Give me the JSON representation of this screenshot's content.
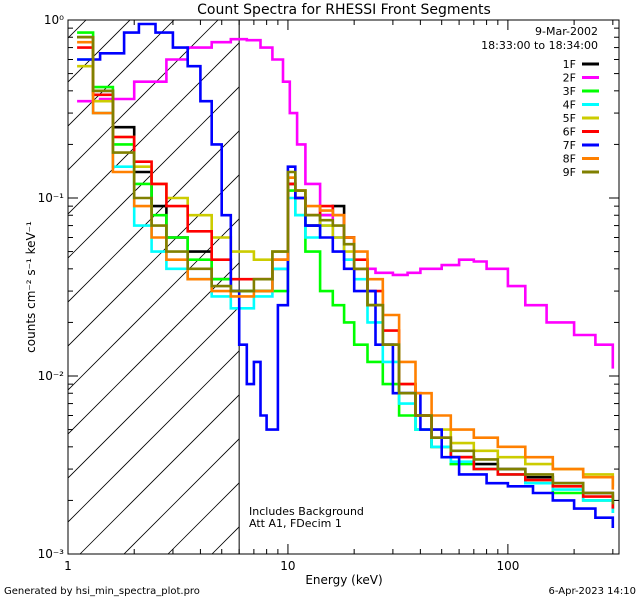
{
  "chart_data": {
    "type": "line",
    "title": "Count Spectra for RHESSI Front Segments",
    "xlabel": "Energy (keV)",
    "ylabel": "counts cm⁻² s⁻¹ keV⁻¹",
    "xscale": "log",
    "yscale": "log",
    "xlim": [
      1.0,
      320
    ],
    "ylim": [
      0.001,
      1.0
    ],
    "x_ticks": [
      {
        "value": 1,
        "label": "1"
      },
      {
        "value": 10,
        "label": "10"
      },
      {
        "value": 100,
        "label": "100"
      }
    ],
    "y_ticks": [
      {
        "value": 1,
        "label": "10⁰"
      },
      {
        "value": 0.1,
        "label": "10⁻¹"
      },
      {
        "value": 0.01,
        "label": "10⁻²"
      },
      {
        "value": 0.001,
        "label": "10⁻³"
      }
    ],
    "date": "9-Mar-2002",
    "time_range": "18:33:00 to 18:34:00",
    "annotations": [
      "Includes Background",
      "Att A1, FDecim 1"
    ],
    "hatched_region_end_kev": 6.0,
    "vertical_line_kev": 6.0,
    "footer_left": "Generated by hsi_min_spectra_plot.pro",
    "footer_right": "6-Apr-2023 14:10",
    "series": [
      {
        "name": "1F",
        "color": "#000000",
        "x": [
          1.1,
          1.3,
          1.6,
          2.0,
          2.4,
          2.8,
          3.5,
          4.5,
          5.5,
          7,
          8.5,
          10,
          10.8,
          12,
          14,
          16,
          18,
          20,
          23,
          27,
          32,
          38,
          45,
          55,
          70,
          90,
          120,
          160,
          220,
          300
        ],
        "y": [
          0.8,
          0.4,
          0.25,
          0.14,
          0.09,
          0.06,
          0.05,
          0.035,
          0.03,
          0.03,
          0.04,
          0.12,
          0.1,
          0.07,
          0.08,
          0.09,
          0.06,
          0.04,
          0.025,
          0.015,
          0.008,
          0.006,
          0.004,
          0.0035,
          0.0032,
          0.003,
          0.0027,
          0.0025,
          0.0022,
          0.0018
        ]
      },
      {
        "name": "2F",
        "color": "#ff00ff",
        "x": [
          1.1,
          1.4,
          2.0,
          2.8,
          3.5,
          4.5,
          5.5,
          6.5,
          7.5,
          8.5,
          9.5,
          10.2,
          11,
          12,
          14,
          16,
          18,
          20,
          25,
          30,
          35,
          40,
          50,
          60,
          70,
          80,
          100,
          120,
          150,
          200,
          250,
          300
        ],
        "y": [
          0.35,
          0.36,
          0.45,
          0.6,
          0.7,
          0.75,
          0.78,
          0.77,
          0.7,
          0.6,
          0.45,
          0.3,
          0.2,
          0.12,
          0.08,
          0.06,
          0.045,
          0.04,
          0.038,
          0.037,
          0.038,
          0.04,
          0.042,
          0.045,
          0.044,
          0.04,
          0.032,
          0.025,
          0.02,
          0.017,
          0.015,
          0.011
        ]
      },
      {
        "name": "3F",
        "color": "#00ff00",
        "x": [
          1.1,
          1.3,
          1.6,
          2.0,
          2.4,
          2.8,
          3.5,
          4.5,
          5.5,
          7,
          8.5,
          10,
          10.8,
          12,
          14,
          16,
          18,
          20,
          23,
          27,
          32,
          38,
          45,
          55,
          70,
          90,
          120,
          160,
          220,
          300
        ],
        "y": [
          0.85,
          0.42,
          0.2,
          0.12,
          0.08,
          0.06,
          0.045,
          0.035,
          0.03,
          0.03,
          0.03,
          0.11,
          0.08,
          0.05,
          0.03,
          0.025,
          0.02,
          0.015,
          0.012,
          0.009,
          0.006,
          0.005,
          0.004,
          0.0032,
          0.003,
          0.0028,
          0.0025,
          0.0022,
          0.002,
          0.0017
        ]
      },
      {
        "name": "4F",
        "color": "#00ffff",
        "x": [
          1.1,
          1.3,
          1.6,
          2.0,
          2.4,
          2.8,
          3.5,
          4.5,
          5.5,
          7,
          8.5,
          10,
          10.8,
          12,
          14,
          16,
          18,
          20,
          23,
          27,
          32,
          38,
          45,
          55,
          70,
          90,
          120,
          160,
          220,
          300
        ],
        "y": [
          0.6,
          0.3,
          0.15,
          0.07,
          0.05,
          0.04,
          0.035,
          0.028,
          0.024,
          0.028,
          0.04,
          0.1,
          0.08,
          0.06,
          0.07,
          0.06,
          0.045,
          0.035,
          0.02,
          0.012,
          0.007,
          0.005,
          0.004,
          0.0033,
          0.003,
          0.0028,
          0.0025,
          0.0023,
          0.002,
          0.0017
        ]
      },
      {
        "name": "5F",
        "color": "#cccc00",
        "x": [
          1.1,
          1.3,
          1.6,
          2.0,
          2.4,
          2.8,
          3.5,
          4.5,
          5.5,
          7,
          8.5,
          10,
          10.8,
          12,
          14,
          16,
          18,
          20,
          23,
          27,
          32,
          38,
          45,
          55,
          70,
          90,
          120,
          160,
          220,
          300
        ],
        "y": [
          0.55,
          0.35,
          0.22,
          0.15,
          0.12,
          0.1,
          0.08,
          0.06,
          0.05,
          0.045,
          0.05,
          0.13,
          0.11,
          0.08,
          0.07,
          0.06,
          0.05,
          0.04,
          0.025,
          0.015,
          0.009,
          0.006,
          0.005,
          0.0042,
          0.0038,
          0.0035,
          0.0032,
          0.003,
          0.0028,
          0.0024
        ]
      },
      {
        "name": "6F",
        "color": "#ff0000",
        "x": [
          1.1,
          1.3,
          1.6,
          2.0,
          2.4,
          2.8,
          3.5,
          4.5,
          5.5,
          7,
          8.5,
          10,
          10.8,
          12,
          14,
          16,
          18,
          20,
          23,
          27,
          32,
          38,
          45,
          55,
          70,
          90,
          120,
          160,
          220,
          300
        ],
        "y": [
          0.7,
          0.38,
          0.22,
          0.16,
          0.12,
          0.09,
          0.065,
          0.045,
          0.035,
          0.035,
          0.045,
          0.12,
          0.1,
          0.08,
          0.09,
          0.08,
          0.06,
          0.045,
          0.03,
          0.018,
          0.009,
          0.006,
          0.0045,
          0.0035,
          0.003,
          0.0028,
          0.0026,
          0.0024,
          0.0021,
          0.0018
        ]
      },
      {
        "name": "7F",
        "color": "#0000ff",
        "x": [
          1.1,
          1.4,
          1.8,
          2.1,
          2.5,
          3.0,
          3.5,
          4.0,
          4.5,
          5.0,
          5.5,
          6.0,
          6.5,
          7.0,
          7.5,
          8.0,
          9.0,
          10,
          10.8,
          12,
          14,
          16,
          18,
          20,
          25,
          30,
          40,
          50,
          60,
          80,
          100,
          130,
          160,
          200,
          250,
          300
        ],
        "y": [
          0.6,
          0.65,
          0.85,
          0.95,
          0.85,
          0.7,
          0.55,
          0.35,
          0.2,
          0.08,
          0.03,
          0.015,
          0.009,
          0.012,
          0.006,
          0.005,
          0.025,
          0.15,
          0.1,
          0.07,
          0.06,
          0.05,
          0.04,
          0.03,
          0.015,
          0.008,
          0.005,
          0.0035,
          0.0028,
          0.0025,
          0.0024,
          0.0022,
          0.002,
          0.0018,
          0.0016,
          0.0014
        ]
      },
      {
        "name": "8F",
        "color": "#ff8000",
        "x": [
          1.1,
          1.3,
          1.6,
          2.0,
          2.4,
          2.8,
          3.5,
          4.5,
          5.5,
          7,
          8.5,
          10,
          10.8,
          12,
          14,
          16,
          18,
          20,
          23,
          27,
          32,
          38,
          45,
          55,
          70,
          90,
          120,
          160,
          220,
          300
        ],
        "y": [
          0.75,
          0.3,
          0.14,
          0.09,
          0.06,
          0.045,
          0.035,
          0.03,
          0.028,
          0.03,
          0.045,
          0.13,
          0.11,
          0.09,
          0.085,
          0.08,
          0.06,
          0.05,
          0.035,
          0.022,
          0.012,
          0.008,
          0.006,
          0.005,
          0.0045,
          0.004,
          0.0035,
          0.003,
          0.0027,
          0.0023
        ]
      },
      {
        "name": "9F",
        "color": "#808000",
        "x": [
          1.1,
          1.3,
          1.6,
          2.0,
          2.4,
          2.8,
          3.5,
          4.5,
          5.5,
          7,
          8.5,
          10,
          10.8,
          12,
          14,
          16,
          18,
          20,
          23,
          27,
          32,
          38,
          45,
          55,
          70,
          90,
          120,
          160,
          220,
          300
        ],
        "y": [
          0.8,
          0.4,
          0.18,
          0.1,
          0.07,
          0.05,
          0.04,
          0.032,
          0.03,
          0.035,
          0.05,
          0.14,
          0.11,
          0.08,
          0.075,
          0.07,
          0.055,
          0.04,
          0.025,
          0.015,
          0.008,
          0.006,
          0.0045,
          0.0038,
          0.0034,
          0.003,
          0.0028,
          0.0025,
          0.0022,
          0.0019
        ]
      }
    ]
  }
}
